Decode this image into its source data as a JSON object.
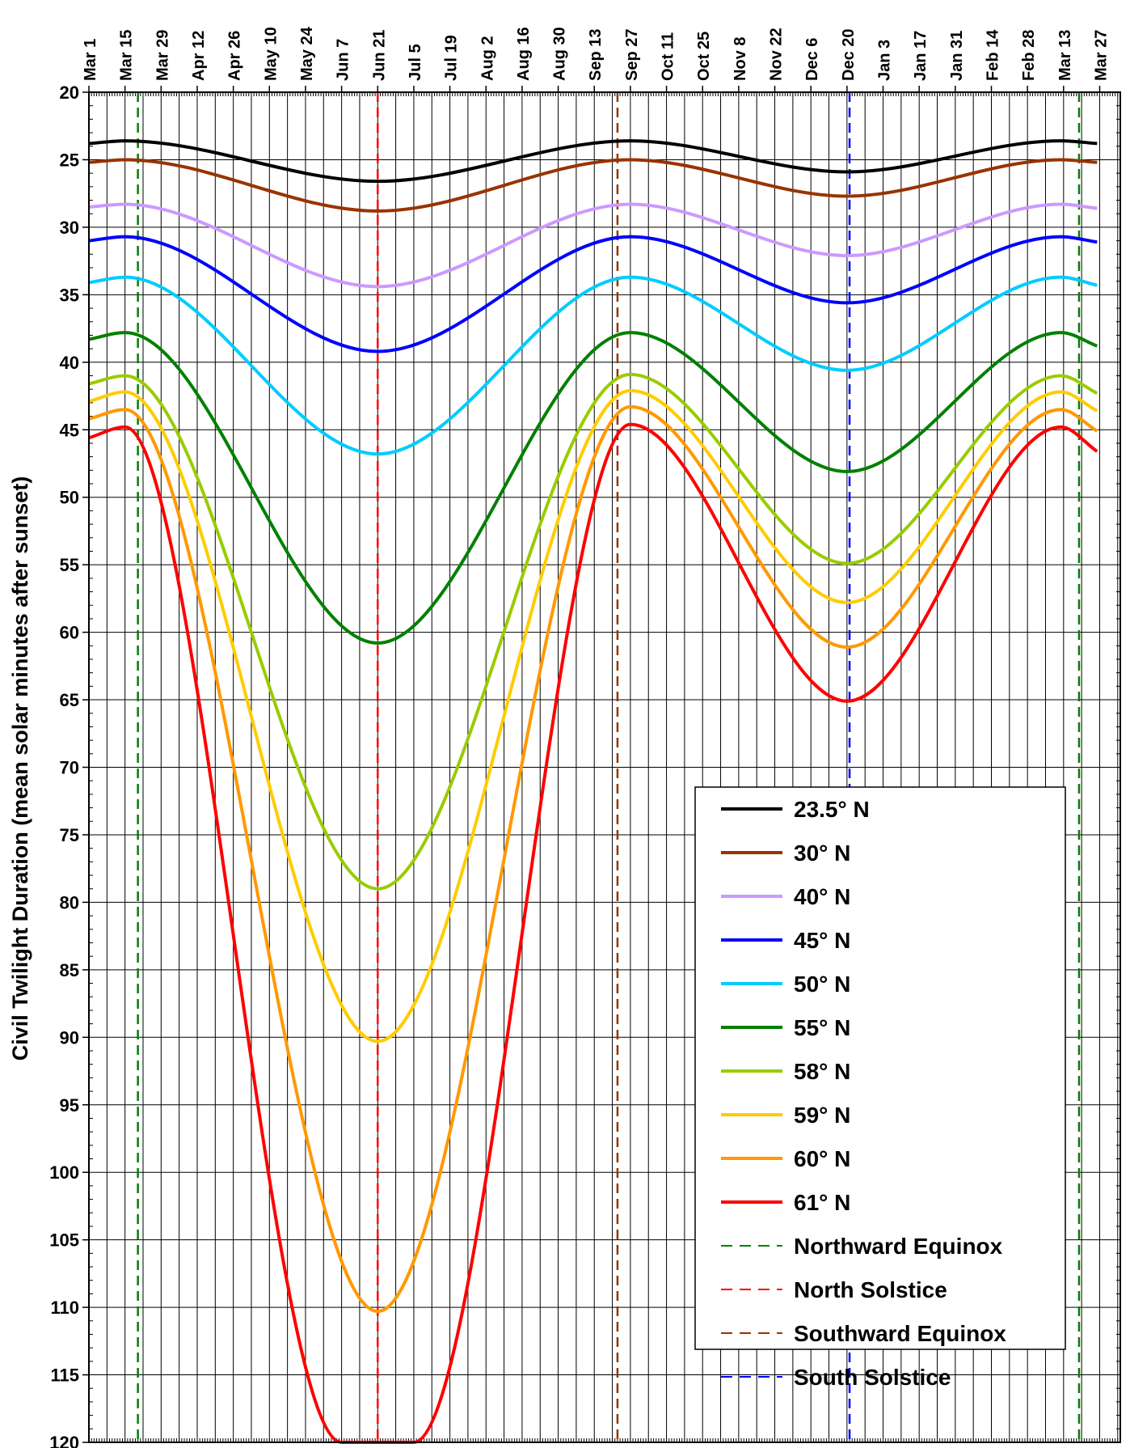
{
  "chart_data": {
    "type": "line",
    "title": "",
    "xlabel": "",
    "ylabel": "Civil Twilight Duration (mean solar minutes after sunset)",
    "x_tick_labels": [
      "Mar 1",
      "Mar 15",
      "Mar 29",
      "Apr 12",
      "Apr 26",
      "May 10",
      "May 24",
      "Jun 7",
      "Jun 21",
      "Jul 5",
      "Jul 19",
      "Aug 2",
      "Aug 16",
      "Aug 30",
      "Sep 13",
      "Sep 27",
      "Oct 11",
      "Oct 25",
      "Nov 8",
      "Nov 22",
      "Dec 6",
      "Dec 20",
      "Jan 3",
      "Jan 17",
      "Jan 31",
      "Feb 14",
      "Feb 28",
      "Mar 13",
      "Mar 27"
    ],
    "x_tick_interval_days": 14,
    "xlim_days": [
      0,
      400
    ],
    "y_ticks": [
      20,
      25,
      30,
      35,
      40,
      45,
      50,
      55,
      60,
      65,
      70,
      75,
      80,
      85,
      90,
      95,
      100,
      105,
      110,
      115,
      120
    ],
    "ylim": [
      20,
      120
    ],
    "y_inverted": true,
    "grid": true,
    "legend_position": "bottom-right",
    "series": [
      {
        "name": "23.5° N",
        "color": "#000000",
        "x": [
          "Mar 1",
          "Mar 15",
          "Jun 21",
          "Sep 27",
          "Dec 20",
          "Mar 13",
          "Mar 27"
        ],
        "y": [
          23.8,
          23.6,
          26.6,
          23.6,
          25.9,
          23.6,
          23.8
        ]
      },
      {
        "name": "30° N",
        "color": "#993300",
        "x": [
          "Mar 1",
          "Mar 15",
          "Jun 21",
          "Sep 27",
          "Dec 20",
          "Mar 13",
          "Mar 27"
        ],
        "y": [
          25.2,
          25.0,
          28.8,
          25.0,
          27.7,
          25.0,
          25.2
        ]
      },
      {
        "name": "40° N",
        "color": "#cc99ff",
        "x": [
          "Mar 1",
          "Mar 15",
          "Jun 21",
          "Sep 27",
          "Dec 20",
          "Mar 13",
          "Mar 27"
        ],
        "y": [
          28.5,
          28.3,
          34.4,
          28.3,
          32.1,
          28.3,
          28.6
        ]
      },
      {
        "name": "45° N",
        "color": "#0000ff",
        "x": [
          "Mar 1",
          "Mar 15",
          "Jun 21",
          "Sep 27",
          "Dec 20",
          "Mar 13",
          "Mar 27"
        ],
        "y": [
          31.0,
          30.7,
          39.2,
          30.7,
          35.6,
          30.7,
          31.1
        ]
      },
      {
        "name": "50° N",
        "color": "#00ccff",
        "x": [
          "Mar 1",
          "Mar 15",
          "Jun 21",
          "Sep 27",
          "Dec 20",
          "Mar 13",
          "Mar 27"
        ],
        "y": [
          34.1,
          33.7,
          46.8,
          33.7,
          40.6,
          33.7,
          34.3
        ]
      },
      {
        "name": "55° N",
        "color": "#008000",
        "x": [
          "Mar 1",
          "Mar 15",
          "Jun 21",
          "Sep 27",
          "Dec 20",
          "Mar 13",
          "Mar 27"
        ],
        "y": [
          38.3,
          37.8,
          60.8,
          37.8,
          48.1,
          37.8,
          38.8
        ]
      },
      {
        "name": "58° N",
        "color": "#99cc00",
        "x": [
          "Mar 1",
          "Mar 15",
          "Jun 21",
          "Sep 27",
          "Dec 20",
          "Mar 13",
          "Mar 27"
        ],
        "y": [
          41.6,
          41.0,
          79.0,
          40.9,
          54.9,
          41.0,
          42.3
        ]
      },
      {
        "name": "59° N",
        "color": "#ffcc00",
        "x": [
          "Mar 1",
          "Mar 15",
          "Jun 21",
          "Sep 27",
          "Dec 20",
          "Mar 13",
          "Mar 27"
        ],
        "y": [
          42.9,
          42.2,
          90.3,
          42.1,
          57.8,
          42.2,
          43.6
        ]
      },
      {
        "name": "60° N",
        "color": "#ff9900",
        "x": [
          "Mar 1",
          "Mar 15",
          "Jun 21",
          "Sep 27",
          "Dec 20",
          "Mar 13",
          "Mar 27"
        ],
        "y": [
          44.2,
          43.5,
          110.3,
          43.3,
          61.1,
          43.5,
          45.1
        ]
      },
      {
        "name": "61° N",
        "color": "#ff0000",
        "x": [
          "Mar 1",
          "Mar 15",
          "Jun 7",
          "Jul 5",
          "Sep 27",
          "Dec 20",
          "Mar 13",
          "Mar 27"
        ],
        "y": [
          45.6,
          44.8,
          120,
          120,
          44.6,
          65.1,
          44.8,
          46.6
        ]
      }
    ],
    "reference_lines": [
      {
        "name": "Northward Equinox",
        "color": "#008000",
        "date": "Mar 20"
      },
      {
        "name": "North Solstice",
        "color": "#ff0000",
        "date": "Jun 21"
      },
      {
        "name": "Southward Equinox",
        "color": "#993300",
        "date": "Sep 22"
      },
      {
        "name": "South Solstice",
        "color": "#0000ff",
        "date": "Dec 21"
      },
      {
        "name": "",
        "color": "#008000",
        "date": "Mar 20"
      }
    ]
  }
}
